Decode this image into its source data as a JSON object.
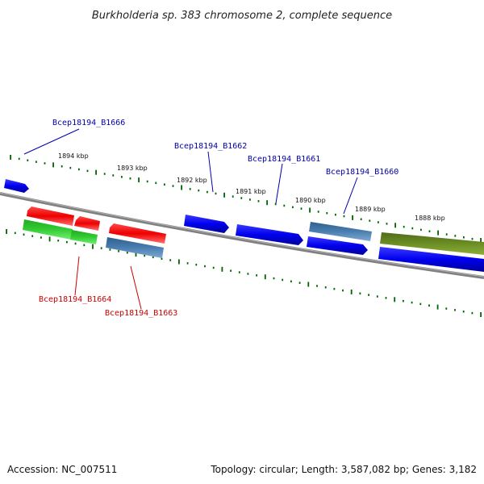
{
  "title": "Burkholderia sp. 383 chromosome 2, complete sequence",
  "footer": {
    "accession": "Accession: NC_007511",
    "summary": "Topology: circular; Length: 3,587,082 bp; Genes: 3,182"
  },
  "colors": {
    "forward_blue": "#0000ee",
    "reverse_red": "#ee0000",
    "green": "#33cc33",
    "steel": "#4a7eb0",
    "olive": "#6b8e23",
    "tick": "#006400",
    "backbone": "#808080",
    "label_blue": "#0000aa",
    "label_red": "#cc0000"
  },
  "axis": {
    "ticks": [
      "1894 kbp",
      "1893 kbp",
      "1892 kbp",
      "1891 kbp",
      "1890 kbp",
      "1889 kbp",
      "1888 kbp"
    ]
  },
  "labels": {
    "B1666": "Bcep18194_B1666",
    "B1662": "Bcep18194_B1662",
    "B1661": "Bcep18194_B1661",
    "B1660": "Bcep18194_B1660",
    "B1664": "Bcep18194_B1664",
    "B1663": "Bcep18194_B1663"
  }
}
